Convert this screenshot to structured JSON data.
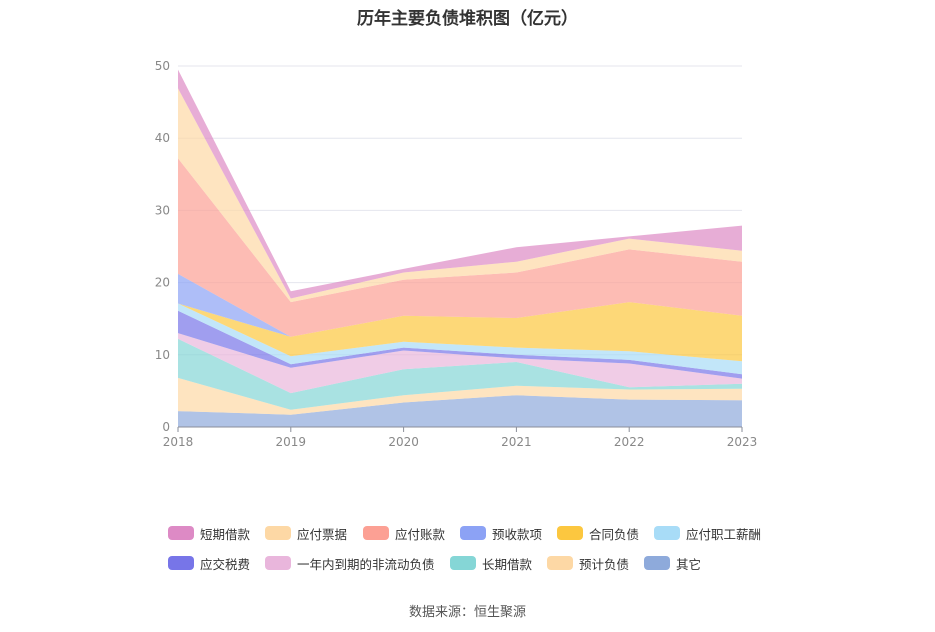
{
  "title": "历年主要负债堆积图（亿元）",
  "source": "数据来源：恒生聚源",
  "chart_data": {
    "type": "area",
    "stacked": true,
    "title": "历年主要负债堆积图（亿元）",
    "x": [
      "2018",
      "2019",
      "2020",
      "2021",
      "2022",
      "2023"
    ],
    "ylim": [
      0,
      50
    ],
    "yticks": [
      0,
      10,
      20,
      30,
      40,
      50
    ],
    "grid": true,
    "legend_position": "bottom",
    "series": [
      {
        "name": "其它",
        "color": "#8eaadb",
        "values": [
          2.2,
          1.7,
          3.4,
          4.4,
          3.8,
          3.7
        ]
      },
      {
        "name": "预计负债",
        "color": "#fdd8a5",
        "values": [
          4.6,
          0.7,
          1.0,
          1.3,
          1.4,
          1.6
        ]
      },
      {
        "name": "长期借款",
        "color": "#85d6d6",
        "values": [
          5.4,
          2.3,
          3.6,
          3.3,
          0.3,
          0.7
        ]
      },
      {
        "name": "一年内到期的非流动负债",
        "color": "#e9b6dc",
        "values": [
          0.8,
          3.5,
          2.6,
          0.5,
          3.3,
          0.7
        ]
      },
      {
        "name": "应交税费",
        "color": "#7775e8",
        "values": [
          3.1,
          0.5,
          0.4,
          0.5,
          0.5,
          0.6
        ]
      },
      {
        "name": "应付职工薪酬",
        "color": "#a8dcf7",
        "values": [
          1.0,
          1.1,
          0.8,
          1.0,
          1.2,
          1.8
        ]
      },
      {
        "name": "合同负债",
        "color": "#fcc73f",
        "values": [
          0.0,
          2.7,
          3.6,
          4.1,
          6.8,
          6.3
        ]
      },
      {
        "name": "预收款项",
        "color": "#8ca2f5",
        "values": [
          4.1,
          0.0,
          0.0,
          0.0,
          0.0,
          0.0
        ]
      },
      {
        "name": "应付账款",
        "color": "#fca094",
        "values": [
          16.0,
          4.8,
          5.0,
          6.3,
          7.3,
          7.5
        ]
      },
      {
        "name": "应付票据",
        "color": "#fdd8a5",
        "values": [
          9.7,
          0.5,
          1.0,
          1.5,
          1.5,
          1.5
        ]
      },
      {
        "name": "短期借款",
        "color": "#dd8ac5",
        "values": [
          2.6,
          1.0,
          0.5,
          2.0,
          0.3,
          3.5
        ]
      }
    ]
  },
  "legend_rows": [
    [
      {
        "name": "短期借款",
        "color": "#dd8ac5"
      },
      {
        "name": "应付票据",
        "color": "#fdd8a5"
      },
      {
        "name": "应付账款",
        "color": "#fca094"
      },
      {
        "name": "预收款项",
        "color": "#8ca2f5"
      },
      {
        "name": "合同负债",
        "color": "#fcc73f"
      },
      {
        "name": "应付职工薪酬",
        "color": "#a8dcf7"
      }
    ],
    [
      {
        "name": "应交税费",
        "color": "#7775e8"
      },
      {
        "name": "一年内到期的非流动负债",
        "color": "#e9b6dc"
      },
      {
        "name": "长期借款",
        "color": "#85d6d6"
      },
      {
        "name": "预计负债",
        "color": "#fdd8a5"
      },
      {
        "name": "其它",
        "color": "#8eaadb"
      }
    ]
  ]
}
